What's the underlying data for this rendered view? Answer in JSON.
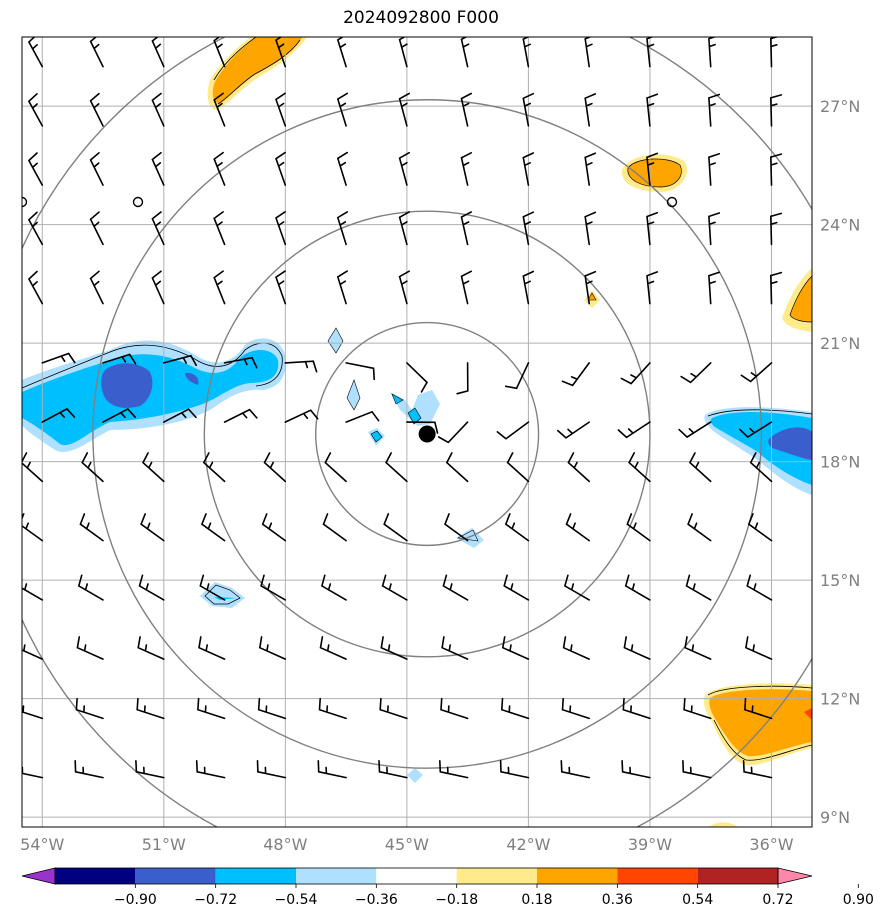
{
  "title": "2024092800 F000",
  "map": {
    "lon_range": [
      -54.5,
      -35
    ],
    "lat_range": [
      8.75,
      28.75
    ],
    "grid_lats": [
      9,
      12,
      15,
      18,
      21,
      24,
      27
    ],
    "grid_lons": [
      -54,
      -51,
      -48,
      -45,
      -42,
      -39,
      -36
    ],
    "lat_labels": [
      "9°N",
      "12°N",
      "15°N",
      "18°N",
      "21°N",
      "24°N",
      "27°N"
    ],
    "lon_labels": [
      "54°W",
      "51°W",
      "48°W",
      "45°W",
      "42°W",
      "39°W",
      "36°W"
    ],
    "center": {
      "lon": -44.5,
      "lat": 18.7
    },
    "range_rings_deg": [
      2.75,
      5.5,
      8.25,
      11
    ]
  },
  "colorbar": {
    "labels": [
      "−0.90",
      "−0.72",
      "−0.54",
      "−0.36",
      "−0.18",
      "0.18",
      "0.36",
      "0.54",
      "0.72",
      "0.90"
    ],
    "colors": [
      "#9933cc",
      "#000080",
      "#3a5fcd",
      "#00bfff",
      "#b0e0ff",
      "#ffffff",
      "#ffeb8c",
      "#ffa500",
      "#ff4500",
      "#b22222",
      "#ff88aa"
    ]
  },
  "fill_colors": {
    "light_blue": "#b0e0ff",
    "blue": "#00bfff",
    "royal_blue": "#3a5fcd",
    "light_yellow": "#ffeb8c",
    "orange": "#ffa500",
    "red": "#ff4500"
  }
}
